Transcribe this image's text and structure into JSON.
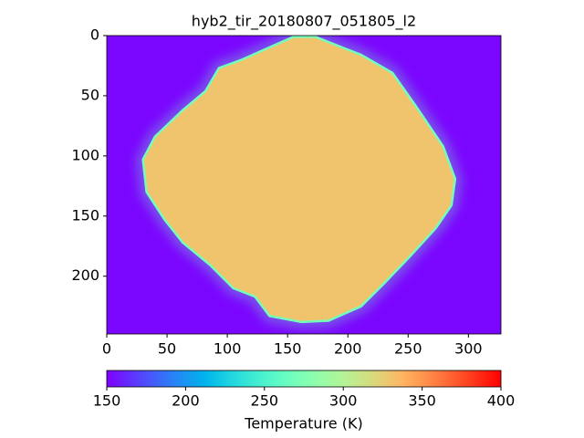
{
  "chart_data": {
    "type": "image",
    "title": "hyb2_tir_20180807_051805_l2",
    "xlim": [
      0,
      327
    ],
    "xticks": [
      0,
      50,
      100,
      150,
      200,
      250,
      300
    ],
    "ylim": [
      248,
      0
    ],
    "yticks": [
      0,
      50,
      100,
      150,
      200
    ],
    "colormap": "rainbow",
    "colorbar": {
      "label": "Temperature (K)",
      "lim": [
        150,
        400
      ],
      "ticks": [
        150,
        200,
        250,
        300,
        350,
        400
      ]
    },
    "background_value": 152,
    "body_value": 330,
    "edge_value": 270,
    "outline": {
      "x": [
        155,
        173,
        211,
        237,
        256,
        279,
        289,
        286,
        273,
        252,
        230,
        211,
        184,
        161,
        135,
        123,
        105,
        86,
        63,
        48,
        33,
        30,
        40,
        63,
        82,
        93,
        112,
        139
      ],
      "y": [
        1,
        1,
        16,
        31,
        58,
        92,
        119,
        141,
        160,
        183,
        206,
        225,
        237,
        238,
        233,
        217,
        210,
        191,
        172,
        153,
        130,
        103,
        84,
        62,
        46,
        27,
        20,
        8
      ]
    }
  }
}
